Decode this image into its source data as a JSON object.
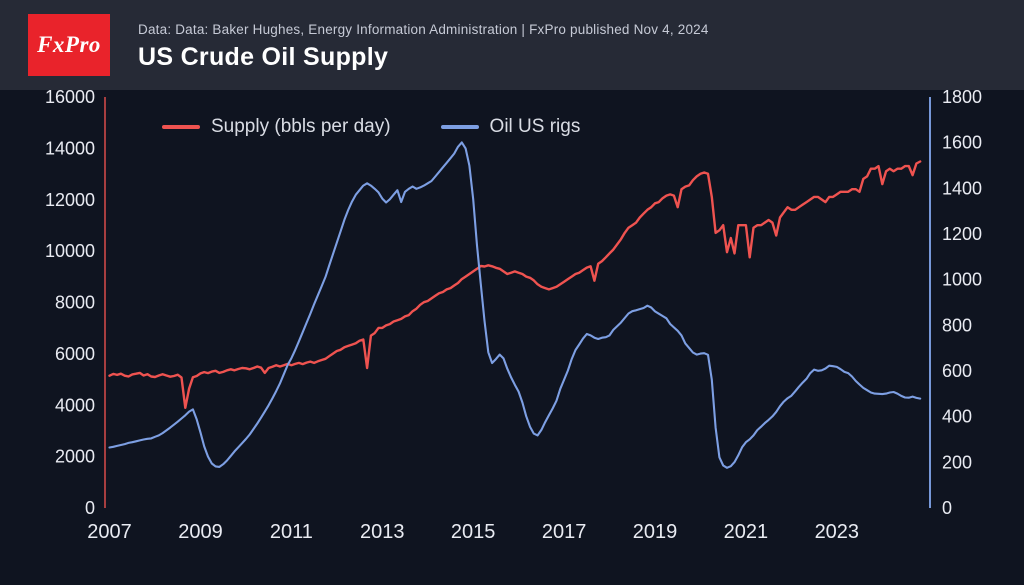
{
  "header": {
    "logo_text": "FxPro",
    "source_note": "Data: Data: Baker Hughes, Energy Information Administration | FxPro published Nov 4, 2024",
    "title": "US Crude Oil Supply"
  },
  "colors": {
    "background": "#0f1420",
    "header_bg": "#262a36",
    "logo_red": "#e9232b",
    "supply_red": "#ef5350",
    "rigs_blue": "#7d9fe3",
    "axis_text": "#e9ebf2"
  },
  "chart_data": {
    "type": "line",
    "title": "US Crude Oil Supply",
    "x_start": 2007,
    "x_step_months": 1,
    "xlim": [
      2006.9,
      2025.05
    ],
    "x_ticks": [
      2007,
      2009,
      2011,
      2013,
      2015,
      2017,
      2019,
      2021,
      2023
    ],
    "grid": false,
    "legend_position": "top-left-inside",
    "left_axis": {
      "title": "Supply (bbls per day)",
      "min": 0,
      "max": 16000,
      "tick_step": 2000,
      "color": "#ef5350"
    },
    "right_axis": {
      "title": "Oil US rigs",
      "min": 0,
      "max": 1800,
      "tick_step": 200,
      "color": "#7d9fe3"
    },
    "series": [
      {
        "name": "Supply (bbls per day)",
        "axis": "left",
        "color": "#ef5350",
        "values": [
          5150,
          5220,
          5180,
          5230,
          5150,
          5120,
          5200,
          5230,
          5260,
          5160,
          5210,
          5120,
          5100,
          5160,
          5210,
          5160,
          5110,
          5140,
          5190,
          5080,
          3900,
          4650,
          5090,
          5140,
          5240,
          5290,
          5250,
          5310,
          5340,
          5260,
          5300,
          5360,
          5400,
          5360,
          5410,
          5450,
          5440,
          5400,
          5450,
          5510,
          5460,
          5260,
          5450,
          5500,
          5560,
          5510,
          5560,
          5610,
          5560,
          5610,
          5650,
          5600,
          5660,
          5700,
          5650,
          5710,
          5760,
          5810,
          5910,
          6010,
          6110,
          6160,
          6260,
          6310,
          6360,
          6410,
          6510,
          6560,
          5450,
          6710,
          6810,
          7010,
          7010,
          7110,
          7160,
          7260,
          7310,
          7360,
          7460,
          7510,
          7660,
          7760,
          7910,
          8010,
          8060,
          8160,
          8260,
          8360,
          8410,
          8510,
          8560,
          8660,
          8760,
          8910,
          9010,
          9110,
          9210,
          9310,
          9420,
          9400,
          9450,
          9410,
          9350,
          9310,
          9210,
          9110,
          9160,
          9210,
          9160,
          9110,
          9010,
          8960,
          8860,
          8710,
          8610,
          8560,
          8510,
          8560,
          8610,
          8710,
          8810,
          8910,
          9010,
          9110,
          9160,
          9260,
          9360,
          9410,
          8850,
          9510,
          9610,
          9760,
          9910,
          10060,
          10260,
          10460,
          10710,
          10910,
          11010,
          11110,
          11310,
          11460,
          11610,
          11710,
          11860,
          11910,
          12060,
          12160,
          12210,
          12160,
          11710,
          12410,
          12510,
          12560,
          12760,
          12910,
          13010,
          13060,
          13010,
          12110,
          10710,
          10810,
          11010,
          9960,
          10510,
          9910,
          11010,
          11010,
          11010,
          9760,
          10910,
          11010,
          11010,
          11110,
          11210,
          11110,
          10610,
          11310,
          11510,
          11710,
          11610,
          11610,
          11710,
          11810,
          11910,
          12010,
          12110,
          12110,
          12010,
          11910,
          12110,
          12110,
          12210,
          12310,
          12310,
          12310,
          12410,
          12410,
          12310,
          12810,
          12910,
          13210,
          13210,
          13310,
          12610,
          13110,
          13210,
          13110,
          13210,
          13210,
          13310,
          13310,
          12960,
          13410,
          13490
        ]
      },
      {
        "name": "Oil US rigs",
        "axis": "right",
        "color": "#7d9fe3",
        "values": [
          265,
          268,
          272,
          276,
          280,
          285,
          288,
          292,
          296,
          300,
          303,
          305,
          312,
          318,
          328,
          340,
          352,
          365,
          378,
          392,
          406,
          422,
          432,
          388,
          330,
          270,
          225,
          195,
          182,
          180,
          192,
          208,
          228,
          248,
          266,
          284,
          302,
          322,
          346,
          370,
          396,
          422,
          450,
          480,
          512,
          546,
          586,
          626,
          656,
          692,
          730,
          770,
          810,
          850,
          892,
          932,
          972,
          1012,
          1062,
          1112,
          1162,
          1212,
          1262,
          1305,
          1342,
          1372,
          1392,
          1412,
          1422,
          1412,
          1398,
          1382,
          1355,
          1338,
          1352,
          1372,
          1392,
          1340,
          1385,
          1398,
          1408,
          1398,
          1404,
          1412,
          1422,
          1432,
          1452,
          1472,
          1492,
          1512,
          1532,
          1552,
          1582,
          1601,
          1575,
          1499,
          1352,
          1150,
          980,
          820,
          682,
          635,
          652,
          672,
          655,
          610,
          572,
          540,
          510,
          462,
          402,
          356,
          326,
          318,
          342,
          376,
          406,
          436,
          470,
          522,
          562,
          602,
          652,
          692,
          716,
          742,
          762,
          756,
          746,
          740,
          746,
          748,
          756,
          780,
          796,
          812,
          832,
          852,
          862,
          866,
          871,
          876,
          886,
          878,
          861,
          851,
          841,
          831,
          806,
          791,
          776,
          756,
          721,
          701,
          681,
          672,
          676,
          678,
          671,
          562,
          352,
          222,
          186,
          176,
          183,
          201,
          231,
          266,
          288,
          301,
          318,
          341,
          356,
          372,
          386,
          401,
          421,
          446,
          466,
          481,
          492,
          511,
          531,
          549,
          566,
          591,
          606,
          601,
          603,
          611,
          623,
          621,
          618,
          608,
          596,
          591,
          576,
          556,
          541,
          526,
          516,
          506,
          501,
          500,
          499,
          501,
          506,
          508,
          501,
          491,
          484,
          483,
          488,
          482,
          479
        ]
      }
    ]
  }
}
